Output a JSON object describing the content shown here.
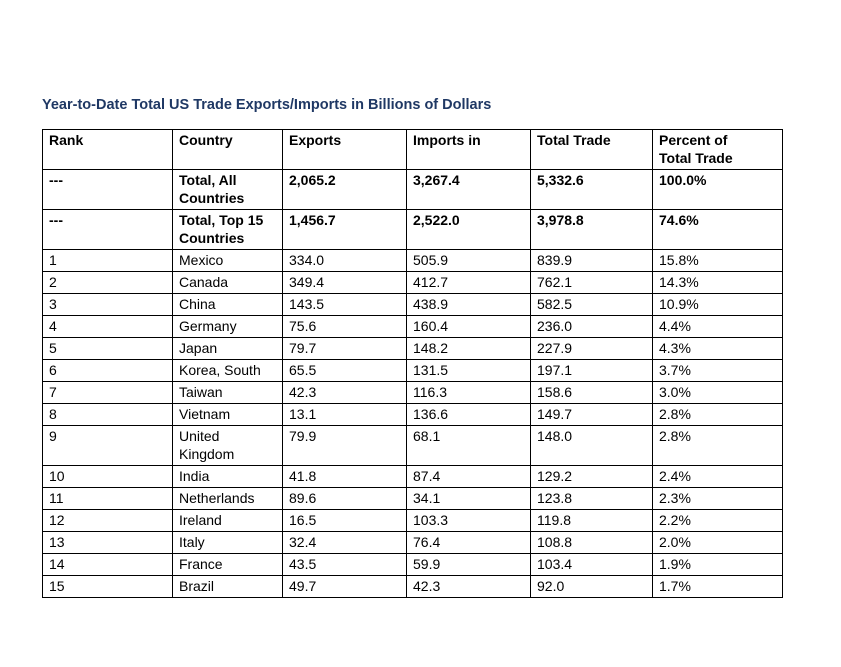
{
  "title": "Year-to-Date Total US Trade Exports/Imports in Billions of Dollars",
  "colors": {
    "title_text": "#1F3864",
    "table_border": "#000000",
    "body_text": "#000000",
    "background": "#FFFFFF"
  },
  "table": {
    "headers": [
      "Rank",
      "Country",
      "Exports",
      "Imports in",
      "Total Trade",
      "Percent of\nTotal Trade"
    ],
    "rows": [
      {
        "rank": "---",
        "country": "Total, All Countries",
        "exports": "2,065.2",
        "imports": "3,267.4",
        "total_trade": "5,332.6",
        "percent": "100.0%"
      },
      {
        "rank": "---",
        "country": "Total, Top 15 Countries",
        "exports": "1,456.7",
        "imports": "2,522.0",
        "total_trade": "3,978.8",
        "percent": "74.6%"
      },
      {
        "rank": "1",
        "country": "Mexico",
        "exports": "334.0",
        "imports": "505.9",
        "total_trade": "839.9",
        "percent": "15.8%"
      },
      {
        "rank": "2",
        "country": "Canada",
        "exports": "349.4",
        "imports": "412.7",
        "total_trade": "762.1",
        "percent": "14.3%"
      },
      {
        "rank": "3",
        "country": "China",
        "exports": "143.5",
        "imports": "438.9",
        "total_trade": "582.5",
        "percent": "10.9%"
      },
      {
        "rank": "4",
        "country": "Germany",
        "exports": "75.6",
        "imports": "160.4",
        "total_trade": "236.0",
        "percent": "4.4%"
      },
      {
        "rank": "5",
        "country": "Japan",
        "exports": "79.7",
        "imports": "148.2",
        "total_trade": "227.9",
        "percent": "4.3%"
      },
      {
        "rank": "6",
        "country": "Korea, South",
        "exports": "65.5",
        "imports": "131.5",
        "total_trade": "197.1",
        "percent": "3.7%"
      },
      {
        "rank": "7",
        "country": "Taiwan",
        "exports": "42.3",
        "imports": "116.3",
        "total_trade": "158.6",
        "percent": "3.0%"
      },
      {
        "rank": "8",
        "country": "Vietnam",
        "exports": "13.1",
        "imports": "136.6",
        "total_trade": "149.7",
        "percent": "2.8%"
      },
      {
        "rank": "9",
        "country": "United Kingdom",
        "exports": "79.9",
        "imports": "68.1",
        "total_trade": "148.0",
        "percent": "2.8%"
      },
      {
        "rank": "10",
        "country": "India",
        "exports": "41.8",
        "imports": "87.4",
        "total_trade": "129.2",
        "percent": "2.4%"
      },
      {
        "rank": "11",
        "country": "Netherlands",
        "exports": "89.6",
        "imports": "34.1",
        "total_trade": "123.8",
        "percent": "2.3%"
      },
      {
        "rank": "12",
        "country": "Ireland",
        "exports": "16.5",
        "imports": "103.3",
        "total_trade": "119.8",
        "percent": "2.2%"
      },
      {
        "rank": "13",
        "country": "Italy",
        "exports": "32.4",
        "imports": "76.4",
        "total_trade": "108.8",
        "percent": "2.0%"
      },
      {
        "rank": "14",
        "country": "France",
        "exports": "43.5",
        "imports": "59.9",
        "total_trade": "103.4",
        "percent": "1.9%"
      },
      {
        "rank": "15",
        "country": "Brazil",
        "exports": "49.7",
        "imports": "42.3",
        "total_trade": "92.0",
        "percent": "1.7%"
      }
    ]
  },
  "chart_data": {
    "type": "table",
    "title": "Year-to-Date Total US Trade Exports/Imports in Billions of Dollars",
    "columns": [
      "Rank",
      "Country",
      "Exports",
      "Imports in",
      "Total Trade",
      "Percent of Total Trade"
    ],
    "rows": [
      [
        "---",
        "Total, All Countries",
        2065.2,
        3267.4,
        5332.6,
        "100.0%"
      ],
      [
        "---",
        "Total, Top 15 Countries",
        1456.7,
        2522.0,
        3978.8,
        "74.6%"
      ],
      [
        1,
        "Mexico",
        334.0,
        505.9,
        839.9,
        "15.8%"
      ],
      [
        2,
        "Canada",
        349.4,
        412.7,
        762.1,
        "14.3%"
      ],
      [
        3,
        "China",
        143.5,
        438.9,
        582.5,
        "10.9%"
      ],
      [
        4,
        "Germany",
        75.6,
        160.4,
        236.0,
        "4.4%"
      ],
      [
        5,
        "Japan",
        79.7,
        148.2,
        227.9,
        "4.3%"
      ],
      [
        6,
        "Korea, South",
        65.5,
        131.5,
        197.1,
        "3.7%"
      ],
      [
        7,
        "Taiwan",
        42.3,
        116.3,
        158.6,
        "3.0%"
      ],
      [
        8,
        "Vietnam",
        13.1,
        136.6,
        149.7,
        "2.8%"
      ],
      [
        9,
        "United Kingdom",
        79.9,
        68.1,
        148.0,
        "2.8%"
      ],
      [
        10,
        "India",
        41.8,
        87.4,
        129.2,
        "2.4%"
      ],
      [
        11,
        "Netherlands",
        89.6,
        34.1,
        123.8,
        "2.3%"
      ],
      [
        12,
        "Ireland",
        16.5,
        103.3,
        119.8,
        "2.2%"
      ],
      [
        13,
        "Italy",
        32.4,
        76.4,
        108.8,
        "2.0%"
      ],
      [
        14,
        "France",
        43.5,
        59.9,
        103.4,
        "1.9%"
      ],
      [
        15,
        "Brazil",
        49.7,
        42.3,
        92.0,
        "1.7%"
      ]
    ]
  }
}
